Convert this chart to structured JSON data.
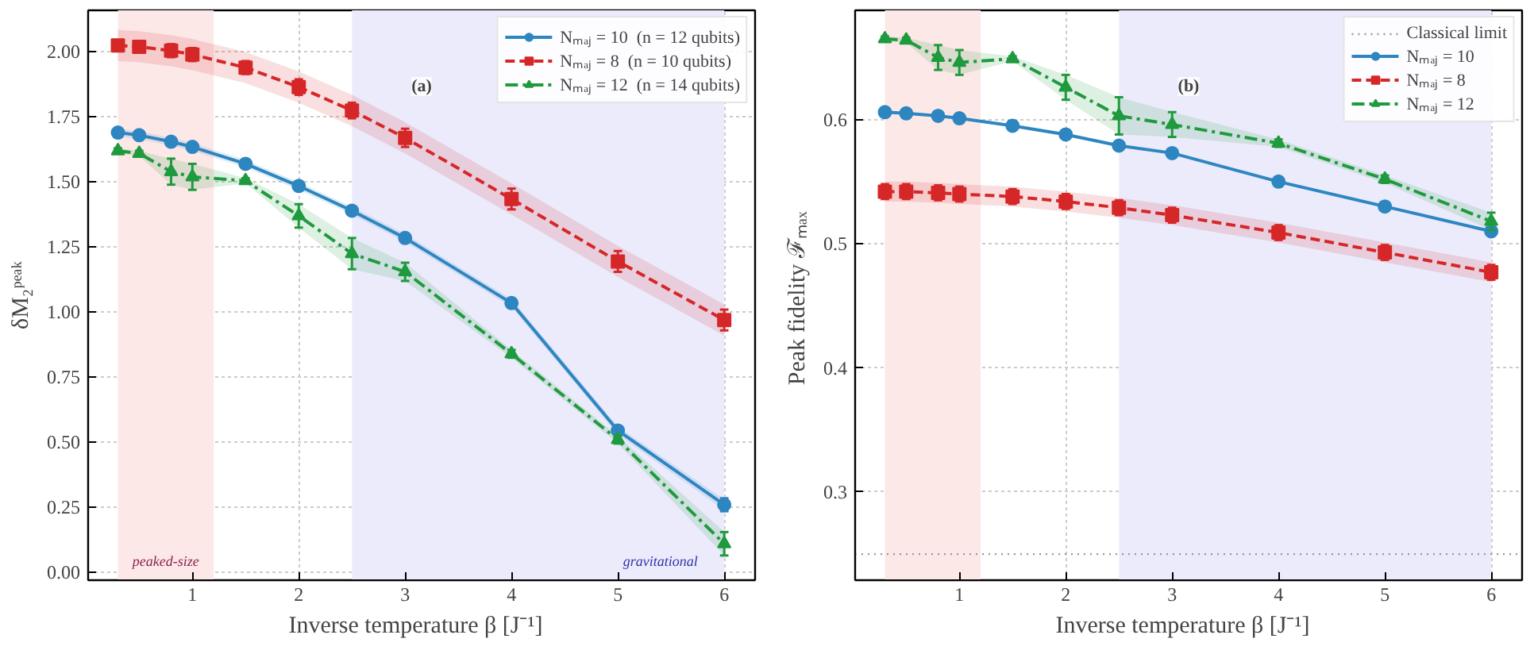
{
  "chart_data": [
    {
      "type": "line",
      "annotations": [
        "(a)"
      ],
      "xlabel": "Inverse temperature  β  [J⁻¹]",
      "ylabel": "δM₂ᵖᵉᵃᵏ",
      "x": [
        0.3,
        0.5,
        0.8,
        1.0,
        1.5,
        2,
        2.5,
        3,
        4,
        5,
        6
      ],
      "xlim": [
        0.02,
        6.29
      ],
      "xticks": [
        1,
        2,
        3,
        4,
        5,
        6
      ],
      "ylim": [
        -0.03,
        2.16
      ],
      "yticks": [
        {
          "value": 0,
          "label": "0.00"
        },
        {
          "value": 0.25,
          "label": "0.25"
        },
        {
          "value": 0.5,
          "label": "0.50"
        },
        {
          "value": 0.75,
          "label": "0.75"
        },
        {
          "value": 1,
          "label": "1.00"
        },
        {
          "value": 1.25,
          "label": "1.25"
        },
        {
          "value": 1.5,
          "label": "1.50"
        },
        {
          "value": 1.75,
          "label": "1.75"
        },
        {
          "value": 2,
          "label": "2.00"
        }
      ],
      "grid": true,
      "legend": "top right",
      "bands": [
        {
          "axis": "x",
          "from": 0.3,
          "to": 1.2,
          "label": "peaked-size",
          "color": "#fde8e8"
        },
        {
          "axis": "x",
          "from": 2.5,
          "to": 6.0,
          "label": "gravitational",
          "color": "#ebebfc"
        }
      ],
      "series": [
        {
          "name": "Nₘₐⱼ = 10  (n = 12 qubits)",
          "color": "#2e86c1",
          "marker": "circle",
          "line_style": "solid",
          "values": [
            1.69,
            1.68,
            1.655,
            1.635,
            1.57,
            1.485,
            1.39,
            1.285,
            1.035,
            0.545,
            0.26
          ],
          "errors": [
            0.01,
            0.01,
            0.01,
            0.01,
            0.01,
            0.01,
            0.01,
            0.01,
            0.01,
            0.015,
            0.025
          ],
          "lower": [
            1.675,
            1.665,
            1.64,
            1.62,
            1.555,
            1.47,
            1.375,
            1.27,
            1.02,
            0.53,
            0.24
          ],
          "upper": [
            1.705,
            1.695,
            1.67,
            1.65,
            1.585,
            1.5,
            1.405,
            1.3,
            1.05,
            0.56,
            0.28
          ]
        },
        {
          "name": "Nₘₐⱼ = 8  (n = 10 qubits)",
          "color": "#d62728",
          "marker": "square",
          "line_style": "dashed",
          "values": [
            2.025,
            2.02,
            2.005,
            1.99,
            1.94,
            1.865,
            1.775,
            1.67,
            1.435,
            1.195,
            0.97
          ],
          "errors": [
            0.02,
            0.02,
            0.025,
            0.025,
            0.025,
            0.03,
            0.03,
            0.035,
            0.04,
            0.04,
            0.04
          ],
          "lower": [
            1.965,
            1.96,
            1.945,
            1.93,
            1.88,
            1.805,
            1.715,
            1.61,
            1.375,
            1.135,
            0.91
          ],
          "upper": [
            2.085,
            2.08,
            2.065,
            2.05,
            2.0,
            1.925,
            1.835,
            1.73,
            1.495,
            1.255,
            1.03
          ]
        },
        {
          "name": "Nₘₐⱼ = 12  (n = 14 qubits)",
          "color": "#1f9a3e",
          "marker": "triangle",
          "line_style": "dashdot",
          "values": [
            1.62,
            1.61,
            1.54,
            1.52,
            1.505,
            1.37,
            1.225,
            1.155,
            0.84,
            0.51,
            0.11
          ],
          "errors": [
            0.01,
            0.01,
            0.05,
            0.05,
            0.01,
            0.045,
            0.06,
            0.035,
            0.015,
            0.015,
            0.045
          ],
          "lower": [
            1.61,
            1.6,
            1.49,
            1.47,
            1.495,
            1.325,
            1.165,
            1.12,
            0.825,
            0.495,
            0.065
          ],
          "upper": [
            1.63,
            1.62,
            1.59,
            1.57,
            1.515,
            1.415,
            1.285,
            1.19,
            0.855,
            0.525,
            0.155
          ]
        }
      ]
    },
    {
      "type": "line",
      "annotations": [
        "(b)"
      ],
      "xlabel": "Inverse temperature  β  [J⁻¹]",
      "ylabel": "Peak fidelity  ℱₘₐₓ",
      "x": [
        0.3,
        0.5,
        0.8,
        1.0,
        1.5,
        2,
        2.5,
        3,
        4,
        5,
        6
      ],
      "xlim": [
        0.02,
        6.29
      ],
      "xticks": [
        1,
        2,
        3,
        4,
        5,
        6
      ],
      "ylim": [
        0.229,
        0.688
      ],
      "yticks": [
        0.3,
        0.4,
        0.5,
        0.6
      ],
      "grid": true,
      "legend": "top right",
      "ref_lines": [
        {
          "axis": "y",
          "value": 0.25,
          "label": "Classical limit",
          "color": "#999999",
          "line_style": "dotted"
        }
      ],
      "bands": [
        {
          "axis": "x",
          "from": 0.3,
          "to": 1.2,
          "color": "#fde8e8"
        },
        {
          "axis": "x",
          "from": 2.5,
          "to": 6.0,
          "color": "#ebebfc"
        }
      ],
      "series": [
        {
          "name": "Nₘₐⱼ = 10",
          "color": "#2e86c1",
          "marker": "circle",
          "line_style": "solid",
          "values": [
            0.606,
            0.605,
            0.603,
            0.601,
            0.595,
            0.588,
            0.579,
            0.573,
            0.55,
            0.53,
            0.51
          ]
        },
        {
          "name": "Nₘₐⱼ = 8",
          "color": "#d62728",
          "marker": "square",
          "line_style": "dashed",
          "values": [
            0.542,
            0.542,
            0.541,
            0.54,
            0.538,
            0.534,
            0.529,
            0.523,
            0.509,
            0.493,
            0.477
          ],
          "errors": [
            0.006,
            0.006,
            0.006,
            0.006,
            0.006,
            0.006,
            0.006,
            0.006,
            0.006,
            0.006,
            0.006
          ],
          "lower": [
            0.534,
            0.534,
            0.533,
            0.532,
            0.53,
            0.526,
            0.521,
            0.515,
            0.501,
            0.485,
            0.469
          ],
          "upper": [
            0.55,
            0.55,
            0.549,
            0.548,
            0.546,
            0.542,
            0.537,
            0.531,
            0.517,
            0.501,
            0.485
          ]
        },
        {
          "name": "Nₘₐⱼ = 12",
          "color": "#1f9a3e",
          "marker": "triangle",
          "line_style": "dashdot",
          "values": [
            0.665,
            0.664,
            0.65,
            0.646,
            0.649,
            0.626,
            0.603,
            0.596,
            0.581,
            0.552,
            0.518
          ],
          "errors": [
            0.002,
            0.002,
            0.01,
            0.01,
            0.002,
            0.01,
            0.015,
            0.01,
            0.003,
            0.003,
            0.007
          ],
          "lower": [
            0.663,
            0.662,
            0.64,
            0.636,
            0.647,
            0.616,
            0.588,
            0.586,
            0.578,
            0.549,
            0.511
          ],
          "upper": [
            0.667,
            0.666,
            0.66,
            0.656,
            0.651,
            0.636,
            0.618,
            0.606,
            0.584,
            0.555,
            0.525
          ]
        }
      ]
    }
  ]
}
